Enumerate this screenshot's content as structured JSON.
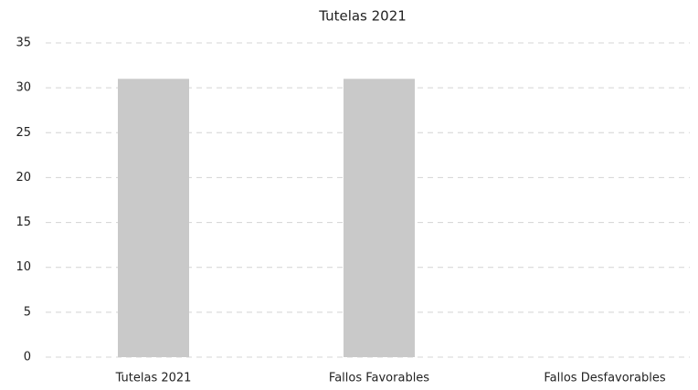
{
  "chart_data": {
    "type": "bar",
    "title": "Tutelas 2021",
    "categories": [
      "Tutelas 2021",
      "Fallos Favorables",
      "Fallos Desfavorables"
    ],
    "values": [
      31,
      31,
      0
    ],
    "color": "#c9c9c9",
    "ylim": [
      0,
      35
    ],
    "yticks": [
      0,
      5,
      10,
      15,
      20,
      25,
      30,
      35
    ],
    "grid": true
  }
}
